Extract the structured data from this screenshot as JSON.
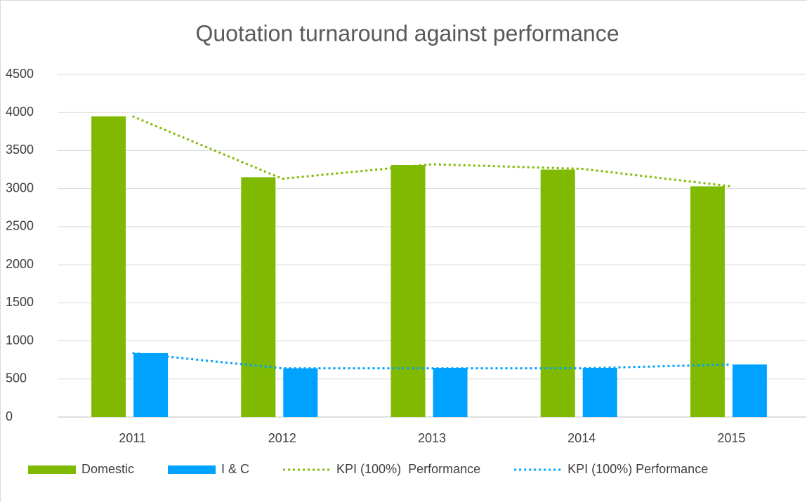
{
  "chart_data": {
    "type": "bar",
    "title": "Quotation turnaround against performance",
    "categories": [
      "2011",
      "2012",
      "2013",
      "2014",
      "2015"
    ],
    "series": [
      {
        "name": "Domestic",
        "type": "bar",
        "color": "#7fba00",
        "values": [
          3950,
          3150,
          3310,
          3250,
          3030
        ]
      },
      {
        "name": "I & C",
        "type": "bar",
        "color": "#00a2ff",
        "values": [
          840,
          640,
          645,
          645,
          690
        ]
      },
      {
        "name": "KPI (100%)  Performance",
        "type": "line",
        "color": "#7fba00",
        "values": [
          3950,
          3130,
          3320,
          3260,
          3030
        ]
      },
      {
        "name": "KPI (100%) Performance",
        "type": "line",
        "color": "#00a2ff",
        "values": [
          840,
          640,
          640,
          640,
          690
        ]
      }
    ],
    "ylim": [
      0,
      4500
    ],
    "yticks": [
      0,
      500,
      1000,
      1500,
      2000,
      2500,
      3000,
      3500,
      4000,
      4500
    ],
    "grid": true,
    "legend": "bottom"
  }
}
